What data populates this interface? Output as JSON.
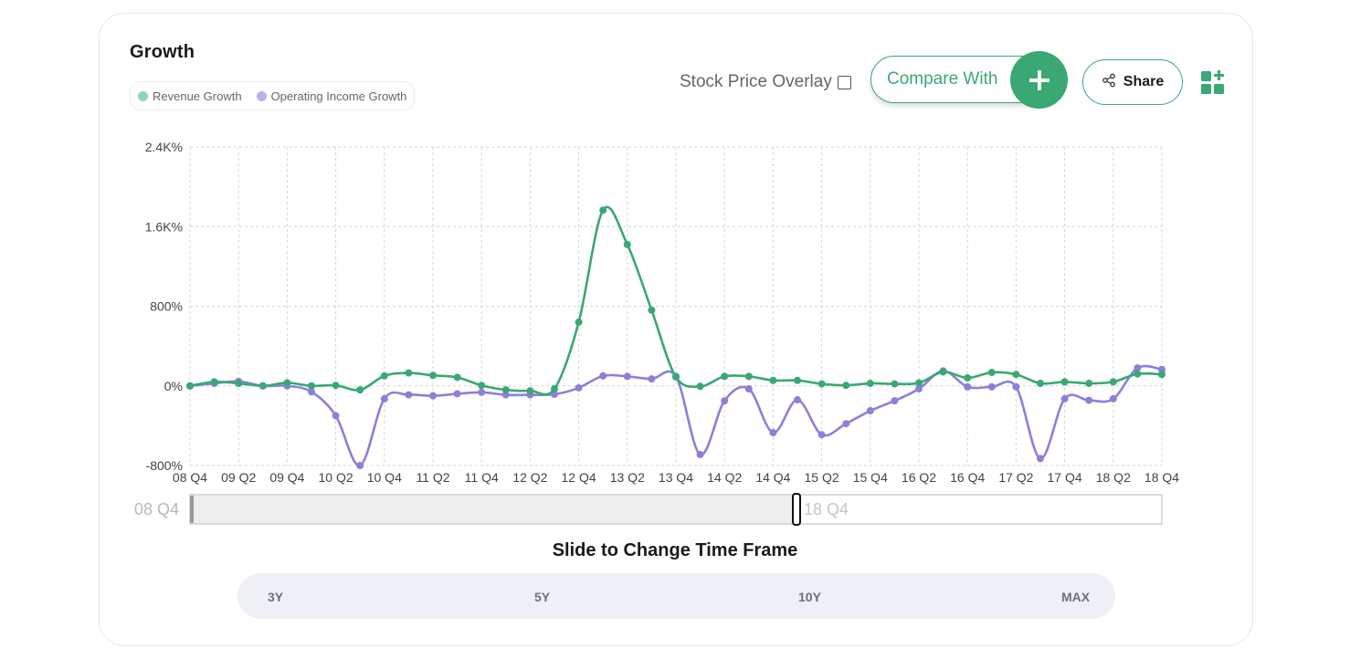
{
  "header": {
    "title": "Growth",
    "legend": [
      {
        "label": "Revenue Growth",
        "color": "#94d4b0"
      },
      {
        "label": "Operating Income Growth",
        "color": "#b8b2ec"
      }
    ],
    "stock_overlay_label": "Stock Price Overlay",
    "stock_overlay_checked": false,
    "compare_label": "Compare With",
    "compare_icon": "plus-icon",
    "share_label": "Share",
    "share_icon": "share-icon",
    "widget_icon": "add-widget-icon"
  },
  "slider": {
    "start_label": "08 Q4",
    "end_label": "18 Q4",
    "caption": "Slide to Change Time Frame"
  },
  "ranges": [
    "3Y",
    "5Y",
    "10Y",
    "MAX"
  ],
  "colors": {
    "revenue": "#3aa873",
    "operating": "#8b80d8",
    "accent": "#3aa873"
  },
  "chart_data": {
    "type": "line",
    "title": "Growth",
    "x_tick_labels": [
      "08 Q4",
      "09 Q2",
      "09 Q4",
      "10 Q2",
      "10 Q4",
      "11 Q2",
      "11 Q4",
      "12 Q2",
      "12 Q4",
      "13 Q2",
      "13 Q4",
      "14 Q2",
      "14 Q4",
      "15 Q2",
      "15 Q4",
      "16 Q2",
      "16 Q4",
      "17 Q2",
      "17 Q4",
      "18 Q2",
      "18 Q4"
    ],
    "y_tick_labels": [
      "2.4K%",
      "1.6K%",
      "800%",
      "0%",
      "-800%"
    ],
    "y_ticks": [
      2400,
      1600,
      800,
      0,
      -800
    ],
    "ylim": [
      -800,
      2400
    ],
    "grid": true,
    "series": [
      {
        "name": "Revenue Growth",
        "color": "#3aa873",
        "values": [
          0,
          40,
          25,
          0,
          30,
          0,
          5,
          -40,
          100,
          130,
          105,
          85,
          5,
          -40,
          -50,
          -30,
          640,
          1765,
          1420,
          760,
          90,
          -5,
          95,
          95,
          55,
          55,
          20,
          5,
          25,
          20,
          30,
          140,
          80,
          135,
          115,
          25,
          40,
          25,
          40,
          120,
          115
        ]
      },
      {
        "name": "Operating Income Growth",
        "color": "#8b80d8",
        "values": [
          0,
          25,
          45,
          0,
          0,
          -60,
          -300,
          -800,
          -130,
          -90,
          -100,
          -80,
          -65,
          -90,
          -90,
          -85,
          -20,
          100,
          95,
          70,
          95,
          -690,
          -150,
          -30,
          -470,
          -140,
          -490,
          -380,
          -250,
          -150,
          -30,
          150,
          -10,
          -10,
          -10,
          -730,
          -130,
          -145,
          -130,
          180,
          165
        ]
      }
    ]
  }
}
